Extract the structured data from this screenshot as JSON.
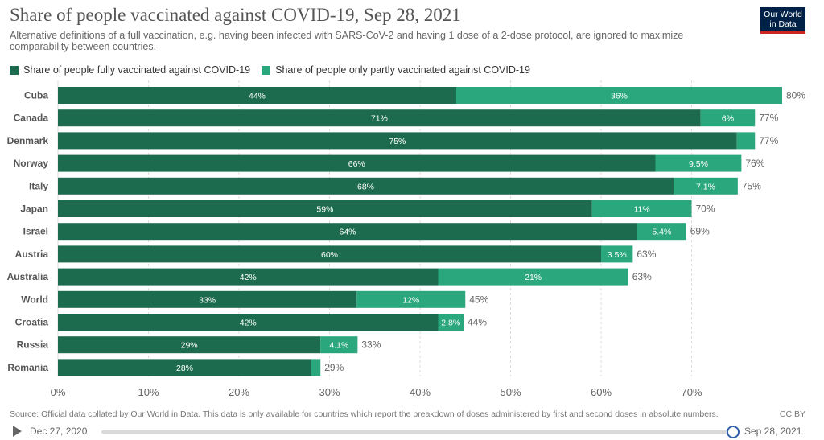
{
  "header": {
    "title": "Share of people vaccinated against COVID-19, Sep 28, 2021",
    "subtitle": "Alternative definitions of a full vaccination, e.g. having been infected with SARS-CoV-2 and having 1 dose of a 2-dose protocol, are ignored to maximize comparability between countries.",
    "logo_line1": "Our World",
    "logo_line2": "in Data"
  },
  "chart_data": {
    "type": "bar",
    "orientation": "horizontal",
    "stacked": true,
    "categories": [
      "Cuba",
      "Canada",
      "Denmark",
      "Norway",
      "Italy",
      "Japan",
      "Israel",
      "Austria",
      "Australia",
      "World",
      "Croatia",
      "Russia",
      "Romania"
    ],
    "series": [
      {
        "name": "Share of people fully vaccinated against COVID-19",
        "color": "#1d6b4f",
        "values": [
          44,
          71,
          75,
          66,
          68,
          59,
          64,
          60,
          42,
          33,
          42,
          29,
          28
        ],
        "labels": [
          "44%",
          "71%",
          "75%",
          "66%",
          "68%",
          "59%",
          "64%",
          "60%",
          "42%",
          "33%",
          "42%",
          "29%",
          "28%"
        ]
      },
      {
        "name": "Share of people only partly vaccinated against COVID-19",
        "color": "#2aa77c",
        "values": [
          36,
          6,
          2,
          9.5,
          7.1,
          11,
          5.4,
          3.5,
          21,
          12,
          2.8,
          4.1,
          1
        ],
        "labels": [
          "36%",
          "6%",
          "",
          "9.5%",
          "7.1%",
          "11%",
          "5.4%",
          "3.5%",
          "21%",
          "12%",
          "2.8%",
          "4.1%",
          ""
        ]
      }
    ],
    "totals": [
      "80%",
      "77%",
      "77%",
      "76%",
      "75%",
      "70%",
      "69%",
      "63%",
      "63%",
      "45%",
      "44%",
      "33%",
      "29%"
    ],
    "xlim": [
      0,
      80
    ],
    "ticks": [
      0,
      10,
      20,
      30,
      40,
      50,
      60,
      70
    ],
    "tick_labels": [
      "0%",
      "10%",
      "20%",
      "30%",
      "40%",
      "50%",
      "60%",
      "70%"
    ],
    "grid": true,
    "legend_position": "top-left",
    "xlabel": "",
    "ylabel": ""
  },
  "footer": {
    "source": "Source: Official data collated by Our World in Data. This data is only available for countries which report the breakdown of doses administered by first and second doses in absolute numbers.",
    "license": "CC BY"
  },
  "timeline": {
    "start_label": "Dec 27, 2020",
    "end_label": "Sep 28, 2021"
  }
}
